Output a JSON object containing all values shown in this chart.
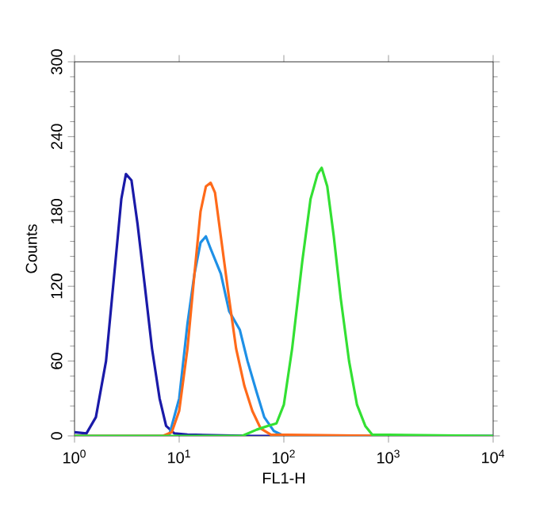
{
  "chart_data": {
    "type": "line",
    "xlabel": "FL1-H",
    "ylabel": "Counts",
    "log": "x",
    "xlim": [
      1,
      10000
    ],
    "ylim": [
      0,
      300
    ],
    "xticks": [
      {
        "value": 1,
        "label": "10$^{0}$"
      },
      {
        "value": 10,
        "label": "10$^{1}$"
      },
      {
        "value": 100,
        "label": "10$^{2}$"
      },
      {
        "value": 1000,
        "label": "10$^{3}$"
      },
      {
        "value": 10000,
        "label": "10$^{4}$"
      }
    ],
    "yticks": [
      0,
      60,
      120,
      180,
      240,
      300
    ],
    "grid": false,
    "marker": "none",
    "line_style": "solid",
    "series": [
      {
        "color": "#1a1aa8",
        "x": [
          1,
          1.3,
          1.6,
          2,
          2.4,
          2.8,
          3.1,
          3.5,
          4,
          4.7,
          5.5,
          6.5,
          7.5,
          9,
          12,
          50,
          10000
        ],
        "values": [
          3,
          2,
          15,
          60,
          130,
          190,
          210,
          205,
          170,
          120,
          70,
          30,
          8,
          2,
          1,
          0,
          0
        ]
      },
      {
        "color": "#1e90e6",
        "x": [
          1,
          8,
          10,
          12,
          14,
          16,
          18,
          20,
          25,
          30,
          38,
          45,
          55,
          65,
          80,
          100,
          200
        ],
        "values": [
          0,
          0,
          30,
          90,
          130,
          155,
          160,
          150,
          130,
          100,
          85,
          60,
          35,
          15,
          4,
          0,
          0
        ]
      },
      {
        "color": "#ff6a1a",
        "x": [
          1,
          7,
          8.5,
          10,
          12,
          14,
          16,
          18,
          20,
          22,
          25,
          30,
          35,
          42,
          50,
          60,
          75,
          1000
        ],
        "values": [
          0,
          0,
          3,
          20,
          70,
          130,
          180,
          200,
          203,
          195,
          160,
          110,
          70,
          40,
          20,
          6,
          1,
          0
        ]
      },
      {
        "color": "#33e033",
        "x": [
          1,
          40,
          55,
          70,
          85,
          100,
          120,
          150,
          180,
          210,
          230,
          260,
          300,
          350,
          420,
          500,
          600,
          700,
          10000
        ],
        "values": [
          0,
          0,
          5,
          8,
          10,
          25,
          70,
          140,
          190,
          210,
          215,
          200,
          160,
          110,
          60,
          25,
          8,
          1,
          0
        ]
      }
    ]
  }
}
